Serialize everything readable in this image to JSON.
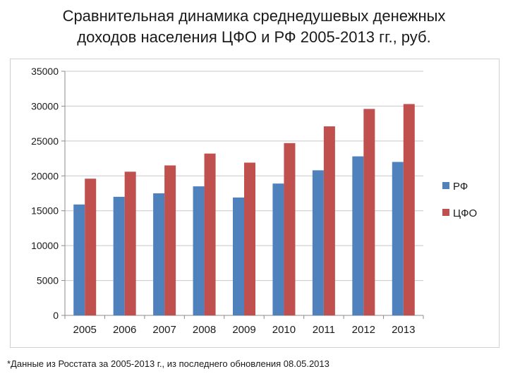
{
  "slide": {
    "title_line1": "Сравнительная динамика среднедушевых денежных",
    "title_line2": "доходов населения ЦФО и РФ 2005-2013 гг., руб.",
    "footnote": "*Данные из Росстата за 2005-2013 г., из последнего обновления 08.05.2013"
  },
  "chart_data": {
    "type": "bar",
    "title": "",
    "xlabel": "",
    "ylabel": "",
    "categories": [
      "2005",
      "2006",
      "2007",
      "2008",
      "2009",
      "2010",
      "2011",
      "2012",
      "2013"
    ],
    "ylim": [
      0,
      35000
    ],
    "yticks": [
      0,
      5000,
      10000,
      15000,
      20000,
      25000,
      30000,
      35000
    ],
    "grid": true,
    "legend_position": "right",
    "series": [
      {
        "name": "РФ",
        "color": "#4f81bd",
        "values": [
          15900,
          17000,
          17500,
          18500,
          16900,
          18900,
          20800,
          22800,
          22000
        ]
      },
      {
        "name": "ЦФО",
        "color": "#c0504d",
        "values": [
          19600,
          20600,
          21500,
          23200,
          21900,
          24700,
          27100,
          29600,
          30300
        ]
      }
    ]
  }
}
